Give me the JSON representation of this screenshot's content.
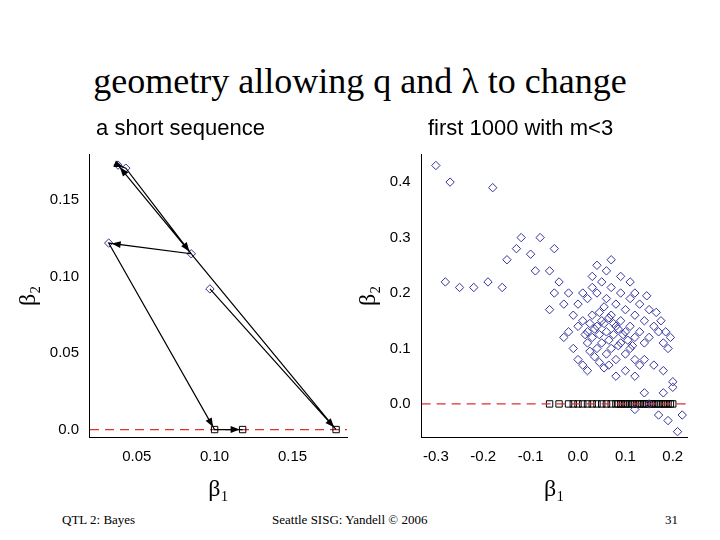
{
  "slide": {
    "title": "geometry allowing q and λ to change",
    "footer_left": "QTL 2: Bayes",
    "footer_center": "Seattle SISG: Yandell © 2006",
    "page": "31"
  },
  "chart_data": [
    {
      "type": "scatter",
      "title": "a short sequence",
      "x_label": "β₁",
      "y_label": "β₂",
      "xlim": [
        0.02,
        0.185
      ],
      "ylim": [
        -0.005,
        0.18
      ],
      "xticks": [
        0.05,
        {
          "value": 0.1,
          "label": "0.10"
        },
        0.15
      ],
      "yticks": [
        {
          "value": 0,
          "label": "0.0"
        },
        0.05,
        {
          "value": 0.1,
          "label": "0.10"
        },
        0.15
      ],
      "grid": false,
      "series": [
        {
          "type": "line",
          "line_style": "arrow",
          "marker": "none",
          "color": "#000000",
          "x": [
            0.097,
            0.178,
            0.038,
            0.043,
            0.085,
            0.032,
            0.1,
            0.118
          ],
          "values": [
            0.092,
            0,
            0.173,
            0.171,
            0.115,
            0.122,
            0,
            0
          ]
        },
        {
          "type": "scatter",
          "marker": "diamond",
          "color": "#33339c",
          "x": [
            0.097,
            0.038,
            0.043,
            0.085,
            0.032
          ],
          "values": [
            0.092,
            0.173,
            0.171,
            0.115,
            0.122
          ]
        },
        {
          "type": "scatter",
          "marker": "square",
          "color": "#000000",
          "x": [
            0.178,
            0.1,
            0.118
          ],
          "values": [
            0,
            0,
            0
          ]
        },
        {
          "type": "line",
          "line_style": "dashed",
          "marker": "none",
          "color": "#e03030",
          "x": [
            0.02,
            0.185
          ],
          "values": [
            0,
            0
          ]
        }
      ]
    },
    {
      "type": "scatter",
      "title": "first 1000 with m<3",
      "x_label": "β₁",
      "y_label": "β₂",
      "xlim": [
        -0.33,
        0.23
      ],
      "ylim": [
        -0.06,
        0.45
      ],
      "xticks": [
        -0.3,
        -0.2,
        -0.1,
        {
          "value": 0,
          "label": "0.0"
        },
        0.1,
        0.2
      ],
      "yticks": [
        {
          "value": 0,
          "label": "0.0"
        },
        0.1,
        0.2,
        0.3,
        0.4
      ],
      "grid": false,
      "series": [
        {
          "type": "line",
          "line_style": "dashed",
          "marker": "none",
          "color": "#e03030",
          "x": [
            -0.33,
            0.23
          ],
          "values": [
            0,
            0
          ]
        },
        {
          "type": "scatter",
          "marker": "diamond",
          "color": "#33339c",
          "x": [
            0.0,
            0.01,
            0.02,
            0.03,
            0.04,
            0.05,
            0.06,
            0.07,
            0.08,
            0.09,
            0.1,
            0.11,
            0.12,
            0.13,
            0.14,
            0.15,
            0.16,
            0.17,
            0.18,
            0.19,
            -0.01,
            0.0,
            0.01,
            0.02,
            0.03,
            0.04,
            0.05,
            0.06,
            0.07,
            0.08,
            0.09,
            0.1,
            0.11,
            0.12,
            0.13,
            0.14,
            0.15,
            0.02,
            0.03,
            0.04,
            0.05,
            0.06,
            0.07,
            0.08,
            0.09,
            0.1,
            0.11,
            0.12,
            0.13,
            0.14,
            0.035,
            0.045,
            0.055,
            0.065,
            0.075,
            0.085,
            0.025,
            0.015,
            0.045,
            0.055,
            0.065,
            0.075,
            0.085,
            0.095,
            0.105,
            0.115,
            0.025,
            0.035,
            0.045,
            0.055,
            0.065,
            0.08,
            0.1,
            0.12,
            0.16,
            0.18,
            0.2,
            -0.02,
            -0.03,
            -0.04,
            -0.05,
            -0.06,
            -0.02,
            -0.01,
            -0.03,
            0.0,
            0.01,
            0.02,
            0.03,
            0.06,
            0.09,
            0.11,
            0.07,
            0.04,
            0.12,
            0.145,
            0.165,
            0.175,
            0.185,
            0.195,
            -0.3,
            -0.27,
            -0.18,
            -0.12,
            -0.08,
            -0.1,
            -0.05,
            -0.13,
            -0.15,
            -0.09,
            -0.06,
            -0.28,
            -0.25,
            -0.22,
            -0.19,
            -0.16,
            0.15,
            0.17,
            0.19,
            0.21,
            0.14,
            0.12,
            0.2,
            0.22,
            0.18
          ],
          "values": [
            0.18,
            0.2,
            0.19,
            0.21,
            0.2,
            0.22,
            0.19,
            0.21,
            0.18,
            0.2,
            0.17,
            0.19,
            0.16,
            0.18,
            0.15,
            0.17,
            0.14,
            0.13,
            0.11,
            0.1,
            0.16,
            0.14,
            0.15,
            0.13,
            0.16,
            0.14,
            0.15,
            0.13,
            0.16,
            0.14,
            0.15,
            0.13,
            0.14,
            0.12,
            0.13,
            0.11,
            0.12,
            0.11,
            0.12,
            0.1,
            0.11,
            0.09,
            0.1,
            0.08,
            0.11,
            0.09,
            0.1,
            0.08,
            0.07,
            0.08,
            0.135,
            0.125,
            0.145,
            0.115,
            0.125,
            0.105,
            0.145,
            0.125,
            0.165,
            0.175,
            0.155,
            0.145,
            0.135,
            0.125,
            0.115,
            0.105,
            0.095,
            0.085,
            0.075,
            0.065,
            0.07,
            0.05,
            0.06,
            0.05,
            0.07,
            0.06,
            0.04,
            0.2,
            0.18,
            0.22,
            0.2,
            0.17,
            0.13,
            0.1,
            0.12,
            0.08,
            0.07,
            0.06,
            0.23,
            0.24,
            0.23,
            0.22,
            0.26,
            0.25,
            0.2,
            0.195,
            0.165,
            0.15,
            0.13,
            0.12,
            0.43,
            0.4,
            0.39,
            0.3,
            0.3,
            0.27,
            0.28,
            0.28,
            0.26,
            0.24,
            0.24,
            0.22,
            0.21,
            0.21,
            0.22,
            0.21,
            0.0,
            -0.02,
            -0.03,
            -0.05,
            0.02,
            -0.01,
            0.03,
            -0.02,
            0.02
          ]
        },
        {
          "type": "scatter",
          "marker": "square",
          "color": "#000000",
          "x": [
            -0.06,
            -0.04,
            -0.02,
            -0.01,
            0.0,
            0.01,
            0.02,
            0.03,
            0.04,
            0.05,
            0.06,
            0.07,
            0.08,
            0.085,
            0.09,
            0.095,
            0.1,
            0.105,
            0.11,
            0.115,
            0.12,
            0.125,
            0.13,
            0.135,
            0.14,
            0.145,
            0.15,
            0.155,
            0.16,
            0.165,
            0.17,
            0.175,
            0.18,
            0.185,
            0.19,
            0.195,
            0.2
          ],
          "values": [
            0,
            0,
            0,
            0,
            0,
            0,
            0,
            0,
            0,
            0,
            0,
            0,
            0,
            0,
            0,
            0,
            0,
            0,
            0,
            0,
            0,
            0,
            0,
            0,
            0,
            0,
            0,
            0,
            0,
            0,
            0,
            0,
            0,
            0,
            0,
            0,
            0
          ]
        }
      ]
    }
  ]
}
